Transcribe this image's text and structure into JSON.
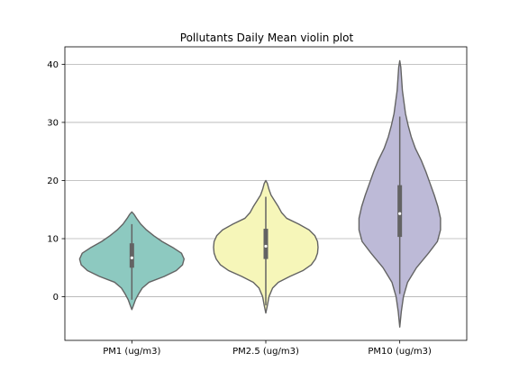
{
  "chart_data": {
    "type": "violin",
    "title": "Pollutants Daily Mean violin plot",
    "xlabel": "",
    "ylabel": "",
    "ylim": [
      -7.5,
      43
    ],
    "y_ticks": [
      0,
      10,
      20,
      30,
      40
    ],
    "grid": "y",
    "categories": [
      "PM1 (ug/m3)",
      "PM2.5 (ug/m3)",
      "PM10 (ug/m3)"
    ],
    "series": [
      {
        "category": "PM1 (ug/m3)",
        "color": "#8dc9c0",
        "min": -0.5,
        "q1": 5,
        "median": 6.7,
        "q3": 9.2,
        "max": 12.5,
        "density": [
          [
            -2.2,
            0.0
          ],
          [
            -1.5,
            0.03
          ],
          [
            -0.5,
            0.07
          ],
          [
            0.5,
            0.13
          ],
          [
            1.5,
            0.2
          ],
          [
            2.5,
            0.33
          ],
          [
            3.5,
            0.62
          ],
          [
            4.5,
            0.85
          ],
          [
            5.5,
            0.97
          ],
          [
            6.5,
            1.0
          ],
          [
            7.5,
            0.95
          ],
          [
            8.5,
            0.78
          ],
          [
            9.5,
            0.58
          ],
          [
            10.5,
            0.42
          ],
          [
            11.5,
            0.28
          ],
          [
            12.5,
            0.17
          ],
          [
            13.5,
            0.09
          ],
          [
            14.2,
            0.04
          ],
          [
            14.6,
            0.0
          ]
        ]
      },
      {
        "category": "PM2.5 (ug/m3)",
        "color": "#f6f6b9",
        "min": -1.5,
        "q1": 6.5,
        "median": 8.7,
        "q3": 11.7,
        "max": 17.2,
        "density": [
          [
            -2.8,
            0.0
          ],
          [
            -1.5,
            0.03
          ],
          [
            0.0,
            0.06
          ],
          [
            1.5,
            0.13
          ],
          [
            2.5,
            0.24
          ],
          [
            3.5,
            0.46
          ],
          [
            4.5,
            0.71
          ],
          [
            5.5,
            0.87
          ],
          [
            6.5,
            0.95
          ],
          [
            7.5,
            0.99
          ],
          [
            8.5,
            1.0
          ],
          [
            9.5,
            0.99
          ],
          [
            10.5,
            0.94
          ],
          [
            11.5,
            0.83
          ],
          [
            12.5,
            0.63
          ],
          [
            13.5,
            0.4
          ],
          [
            14.5,
            0.3
          ],
          [
            15.5,
            0.24
          ],
          [
            16.5,
            0.17
          ],
          [
            17.5,
            0.1
          ],
          [
            18.5,
            0.06
          ],
          [
            19.5,
            0.03
          ],
          [
            20.0,
            0.0
          ]
        ]
      },
      {
        "category": "PM10 (ug/m3)",
        "color": "#bdbad7",
        "min": 0.5,
        "q1": 10.3,
        "median": 14.3,
        "q3": 19.2,
        "max": 31,
        "density": [
          [
            -5.2,
            0.0
          ],
          [
            -2.5,
            0.03
          ],
          [
            0.0,
            0.07
          ],
          [
            2.5,
            0.15
          ],
          [
            5.0,
            0.32
          ],
          [
            7.5,
            0.55
          ],
          [
            9.5,
            0.72
          ],
          [
            11.5,
            0.78
          ],
          [
            13.5,
            0.78
          ],
          [
            15.5,
            0.73
          ],
          [
            17.5,
            0.66
          ],
          [
            19.5,
            0.58
          ],
          [
            21.5,
            0.5
          ],
          [
            23.5,
            0.41
          ],
          [
            25.5,
            0.3
          ],
          [
            27.5,
            0.22
          ],
          [
            29.5,
            0.16
          ],
          [
            31.5,
            0.11
          ],
          [
            33.5,
            0.08
          ],
          [
            35.5,
            0.05
          ],
          [
            37.5,
            0.035
          ],
          [
            39.5,
            0.02
          ],
          [
            40.6,
            0.0
          ]
        ]
      }
    ]
  }
}
